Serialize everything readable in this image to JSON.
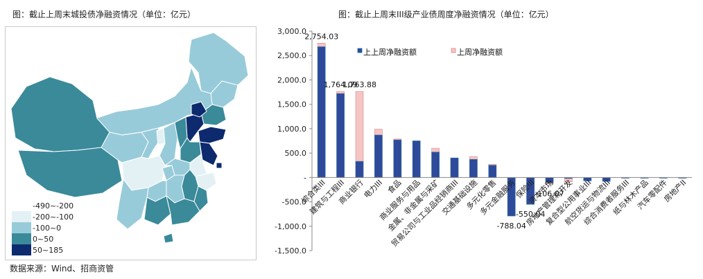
{
  "left_chart": {
    "title": "图：截止上周末城投债净融资情况（单位：亿元）",
    "legend": [
      {
        "label": "-490~-200",
        "color": "#ffffff"
      },
      {
        "label": "-200~-100",
        "color": "#e3f1f4"
      },
      {
        "label": "-100~0",
        "color": "#98cbd9"
      },
      {
        "label": "0~50",
        "color": "#3a8a9a"
      },
      {
        "label": "50~185",
        "color": "#0d2a6e"
      }
    ]
  },
  "source": "数据来源：Wind、招商资管",
  "chart_data": {
    "type": "bar",
    "title": "图：截止上周末III级产业债周度净融资情况（单位：亿元）",
    "categories": [
      "综合类III",
      "建筑与工程III",
      "商业银行",
      "电力III",
      "食品",
      "商业服务与用品",
      "金属、非金属与采矿",
      "贸易公司与工业品经销商III",
      "交通基础设施",
      "多元化零售",
      "多元金融服务",
      "保险III",
      "资本市场",
      "房地产管理和开发",
      "复合型公用事业III",
      "航空货运与物流III",
      "综合消费者服务III",
      "纸与林木产品",
      "汽车零配件",
      "房地产II"
    ],
    "series": [
      {
        "name": "上上周净融资额",
        "color": "#2f4a9a",
        "values": [
          2680,
          1720,
          330,
          870,
          770,
          750,
          520,
          400,
          370,
          250,
          -790,
          -550,
          -106,
          -20,
          -70,
          -80,
          -5,
          -5,
          -5,
          -5
        ]
      },
      {
        "name": "上周净融资额",
        "color": "#f6c4c4",
        "values": [
          2754.03,
          1764.09,
          1763.88,
          990,
          790,
          750,
          600,
          400,
          430,
          270,
          -788.04,
          -550,
          -130,
          -90,
          -70,
          -70,
          -10,
          -15,
          -10,
          -15
        ]
      }
    ],
    "data_labels": [
      {
        "category": "综合类III",
        "text": "2,754.03"
      },
      {
        "category": "建筑与工程III",
        "text": "1,764.09"
      },
      {
        "category": "商业银行",
        "text": "1,763.88"
      },
      {
        "category": "多元金融服务",
        "text": "-788.04"
      },
      {
        "category": "保险III",
        "text": "-550.04"
      },
      {
        "category": "资本市场",
        "text": "-106.07"
      }
    ],
    "yticks": [
      "3,000.0",
      "2,500.0",
      "2,000.0",
      "1,500.0",
      "1,000.0",
      "500.0",
      "-",
      "-500.0",
      "-1,000.0",
      "-1,500.0"
    ],
    "ylim": [
      -1500,
      3000
    ],
    "legend_position": "top-center"
  }
}
